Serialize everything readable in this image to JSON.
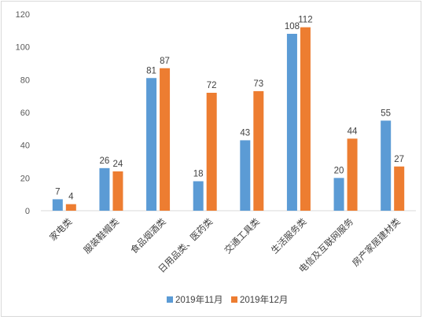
{
  "chart_data": {
    "type": "bar",
    "categories": [
      "家电类",
      "服装鞋帽类",
      "食品烟酒类",
      "日用品类、医药类",
      "交通工具类",
      "生活服务类",
      "电信及互联网服务",
      "房产家居建材类"
    ],
    "series": [
      {
        "name": "2019年11月",
        "color": "#5b9bd5",
        "values": [
          7,
          26,
          81,
          18,
          43,
          108,
          20,
          55
        ]
      },
      {
        "name": "2019年12月",
        "color": "#ed7d31",
        "values": [
          4,
          24,
          87,
          72,
          73,
          112,
          44,
          27
        ]
      }
    ],
    "ylim": [
      0,
      120
    ],
    "yticks": [
      0,
      20,
      40,
      60,
      80,
      100,
      120
    ],
    "ytick_labels": [
      "0",
      "20",
      "40",
      "60",
      "80",
      "100",
      "120"
    ],
    "grid": false,
    "legend_position": "bottom",
    "title": "",
    "xlabel": "",
    "ylabel": ""
  }
}
